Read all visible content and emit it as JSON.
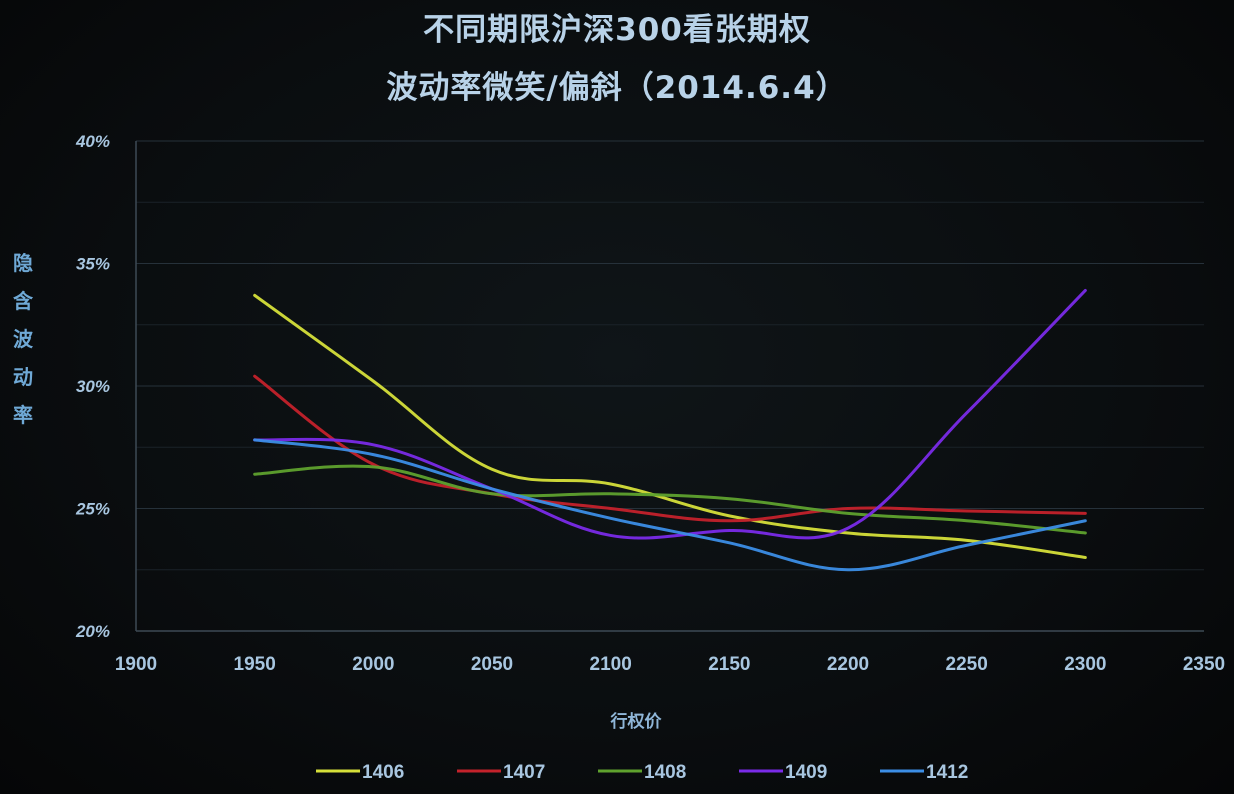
{
  "chart_data": {
    "type": "line",
    "title": "不同期限沪深300看张期权",
    "subtitle": "波动率微笑/偏斜（2014.6.4）",
    "xlabel": "行权价",
    "ylabel": "隐含波动率",
    "xlim": [
      1900,
      2350
    ],
    "ylim": [
      20,
      40
    ],
    "x_ticks": [
      1900,
      1950,
      2000,
      2050,
      2100,
      2150,
      2200,
      2250,
      2300,
      2350
    ],
    "y_ticks": [
      "40%",
      "35%",
      "30%",
      "25%",
      "20%"
    ],
    "y_tick_values": [
      40,
      35,
      30,
      25,
      20
    ],
    "grid": true,
    "legend_position": "bottom",
    "x": [
      1950,
      2000,
      2050,
      2100,
      2150,
      2200,
      2250,
      2300
    ],
    "series": [
      {
        "name": "1406",
        "color": "#d6e03a",
        "values": [
          33.7,
          30.2,
          26.6,
          26.0,
          24.7,
          24.0,
          23.7,
          23.0
        ]
      },
      {
        "name": "1407",
        "color": "#c4222b",
        "values": [
          30.4,
          26.8,
          25.6,
          25.0,
          24.5,
          25.0,
          24.9,
          24.8
        ]
      },
      {
        "name": "1408",
        "color": "#5fa22e",
        "values": [
          26.4,
          26.7,
          25.6,
          25.6,
          25.4,
          24.8,
          24.5,
          24.0
        ]
      },
      {
        "name": "1409",
        "color": "#7a2be8",
        "values": [
          27.8,
          27.6,
          25.8,
          23.9,
          24.1,
          24.2,
          28.9,
          33.9
        ]
      },
      {
        "name": "1412",
        "color": "#3c8ee6",
        "values": [
          27.8,
          27.2,
          25.8,
          24.6,
          23.6,
          22.5,
          23.5,
          24.5
        ]
      }
    ]
  }
}
